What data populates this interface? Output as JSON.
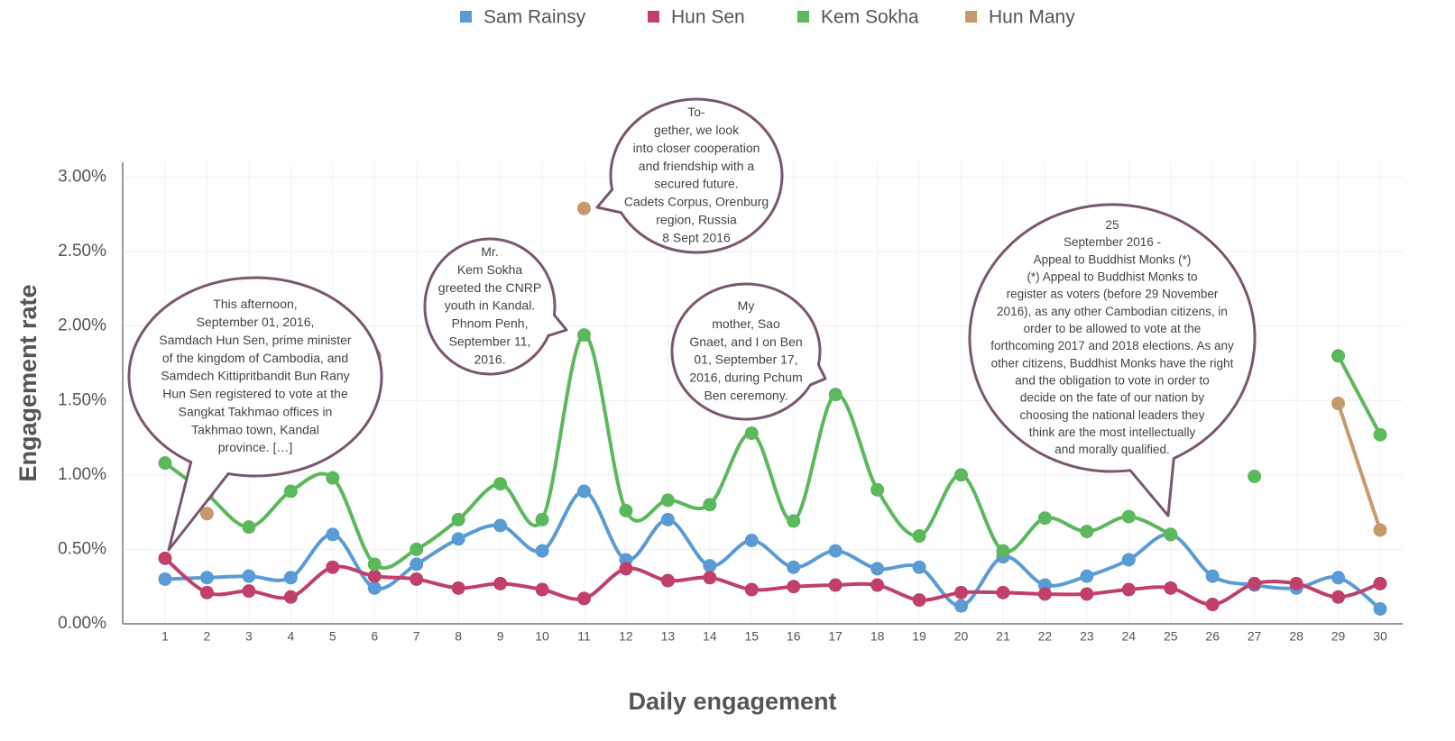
{
  "chart_data": {
    "type": "line",
    "xlabel": "Daily engagement",
    "ylabel": "Engagement rate",
    "categories": [
      "1",
      "2",
      "3",
      "4",
      "5",
      "6",
      "7",
      "8",
      "9",
      "10",
      "11",
      "12",
      "13",
      "14",
      "15",
      "16",
      "17",
      "18",
      "19",
      "20",
      "21",
      "22",
      "23",
      "24",
      "25",
      "26",
      "27",
      "28",
      "29",
      "30"
    ],
    "series": [
      {
        "name": "Sam Rainsy",
        "color": "#5b9bd5",
        "values": [
          0.3,
          0.31,
          0.32,
          0.31,
          0.6,
          0.24,
          0.4,
          0.57,
          0.66,
          0.49,
          0.89,
          0.43,
          0.7,
          0.39,
          0.56,
          0.38,
          0.49,
          0.37,
          0.38,
          0.12,
          0.45,
          0.26,
          0.32,
          0.43,
          0.6,
          0.32,
          0.26,
          0.24,
          0.31,
          0.1
        ]
      },
      {
        "name": "Hun Sen",
        "color": "#c0406a",
        "values": [
          0.44,
          0.21,
          0.22,
          0.18,
          0.38,
          0.32,
          0.3,
          0.24,
          0.27,
          0.23,
          0.17,
          0.37,
          0.29,
          0.31,
          0.23,
          0.25,
          0.26,
          0.26,
          0.16,
          0.21,
          0.21,
          0.2,
          0.2,
          0.23,
          0.24,
          0.13,
          0.27,
          0.27,
          0.18,
          0.27
        ]
      },
      {
        "name": "Kem Sokha",
        "color": "#5cb85c",
        "values": [
          1.08,
          0.87,
          0.65,
          0.89,
          0.98,
          0.4,
          0.5,
          0.7,
          0.94,
          0.7,
          1.94,
          0.76,
          0.83,
          0.8,
          1.28,
          0.69,
          1.54,
          0.9,
          0.59,
          1.0,
          0.49,
          0.71,
          0.62,
          0.72,
          0.6,
          null,
          0.99,
          null,
          1.8,
          1.27
        ]
      },
      {
        "name": "Hun Many",
        "color": "#c49a6c",
        "values": [
          null,
          0.74,
          null,
          null,
          null,
          1.8,
          null,
          null,
          null,
          null,
          2.79,
          null,
          null,
          null,
          null,
          null,
          null,
          null,
          null,
          null,
          null,
          null,
          null,
          null,
          null,
          null,
          null,
          null,
          1.48,
          0.63
        ]
      }
    ],
    "ylim": [
      0,
      3.1
    ],
    "yticks": [
      {
        "value": 0,
        "label": "0.00%"
      },
      {
        "value": 0.5,
        "label": "0.50%"
      },
      {
        "value": 1,
        "label": "1.00%"
      },
      {
        "value": 1.5,
        "label": "1.50%"
      },
      {
        "value": 2,
        "label": "2.00%"
      },
      {
        "value": 2.5,
        "label": "2.50%"
      },
      {
        "value": 3,
        "label": "3.00%"
      }
    ],
    "grid": true,
    "legend": "top",
    "annotations": [
      {
        "lines": [
          "This afternoon,",
          "September 01, 2016,",
          "Samdach Hun Sen, prime minister",
          "of the kingdom of Cambodia, and",
          "Samdech Kittipritbandit Bun Rany",
          "Hun Sen registered to vote at the",
          "Sangkat Takhmao offices in",
          "Takhmao town, Kandal",
          "province. […]"
        ]
      },
      {
        "lines": [
          "Mr.",
          "Kem Sokha",
          "greeted the CNRP",
          "youth in Kandal.",
          "Phnom Penh,",
          "September 11,",
          "2016."
        ]
      },
      {
        "lines": [
          "To-",
          "gether, we look",
          "into closer cooperation",
          "and friendship with a",
          "secured future.",
          "Cadets Corpus, Orenburg",
          "region, Russia",
          "8 Sept 2016"
        ]
      },
      {
        "lines": [
          "My",
          "mother, Sao",
          "Gnaet, and I on Ben",
          "01, September 17,",
          "2016, during Pchum",
          "Ben ceremony."
        ]
      },
      {
        "lines": [
          "25",
          "September 2016 -",
          "Appeal to Buddhist Monks (*)",
          "(*) Appeal to Buddhist Monks to",
          "register as voters (before 29 November",
          "2016), as any other Cambodian citizens, in",
          "order to be allowed to vote at the",
          "forthcoming 2017 and 2018 elections. As any",
          "other citizens, Buddhist Monks have the right",
          "and the obligation to vote in order to",
          "decide on the fate of our nation by",
          "choosing the national leaders they",
          "think are the most intellectually",
          "and morally qualified."
        ]
      }
    ]
  }
}
